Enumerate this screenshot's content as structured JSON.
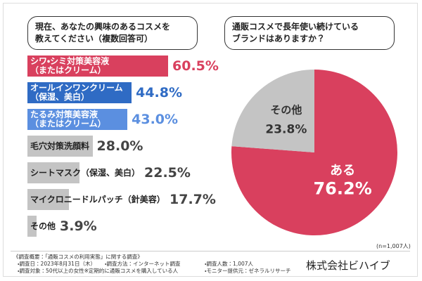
{
  "chart_data": [
    {
      "type": "hbar",
      "title": "現在、あなたの興味のあるコスメを\n教えてください（複数回答可）",
      "categories": [
        "シワ・シミ対策美容液\n（またはクリーム）",
        "オールインワンクリーム\n（保湿、美白）",
        "たるみ対策美容液\n（またはクリーム）",
        "毛穴対策洗顔料",
        "シートマスク（保湿、美白）",
        "マイクロニードルパッチ（針美容）",
        "その他"
      ],
      "values": [
        60.5,
        44.8,
        43.0,
        28.0,
        22.5,
        17.7,
        3.9
      ],
      "value_labels": [
        "60.5%",
        "44.8%",
        "43.0%",
        "28.0%",
        "22.5%",
        "17.7%",
        "3.9%"
      ],
      "colors": [
        "#d9405e",
        "#2f6bc4",
        "#5b8fe0",
        "#c4c4c4",
        "#c4c4c4",
        "#c4c4c4",
        "#c4c4c4"
      ]
    },
    {
      "type": "pie",
      "title": "通販コスメで長年使い続けている\nブランドはありますか？",
      "categories": [
        "ある",
        "その他"
      ],
      "values": [
        76.2,
        23.8
      ],
      "value_labels": [
        "76.2%",
        "23.8%"
      ],
      "colors": [
        "#d9405e",
        "#c4c4c4"
      ],
      "note": "(n=1,007人)"
    }
  ],
  "footer": {
    "heading": "《調査概要：「通販コスメの利用実態」に関する調査》",
    "items": [
      "・調査日：2023年8月31日（木）",
      "・調査方法：インターネット調査",
      "・調査人数：1,007人",
      "・調査対象：50代以上の女性※定期的に通販コスメを購入している人",
      "・モニター提供元：ゼネラルリサーチ"
    ],
    "company": "株式会社ビハイブ"
  }
}
